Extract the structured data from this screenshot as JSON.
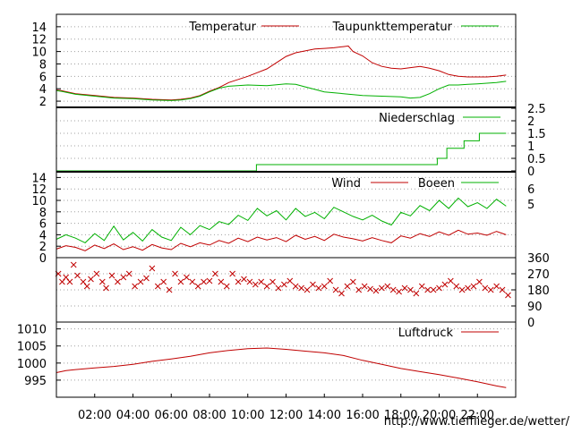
{
  "colors": {
    "red": "#c00000",
    "green": "#00b000",
    "frame": "#000000",
    "grid": "#a0a0a0",
    "url": "#ff0000"
  },
  "footer_url": "http://www.tiefflieger.de/wetter/",
  "chart_data": [
    {
      "id": "temperature",
      "type": "line",
      "ylim": [
        1,
        16
      ],
      "yticks": [
        2,
        4,
        6,
        8,
        10,
        12,
        14
      ],
      "ytick_labels": [
        "2",
        "4",
        "6",
        "8",
        "10",
        "12",
        "14"
      ],
      "series": [
        {
          "name": "Temperatur",
          "color": "#c00000",
          "x": [
            0,
            0.25,
            1,
            2,
            3,
            4,
            5,
            6,
            6.5,
            7,
            7.5,
            8,
            8.5,
            9,
            9.5,
            10,
            10.5,
            11,
            11.5,
            12,
            12.5,
            13,
            13.5,
            14,
            14.5,
            15,
            15.25,
            15.5,
            16,
            16.5,
            17,
            17.5,
            18,
            18.5,
            19,
            19.5,
            20,
            20.5,
            21,
            21.5,
            22,
            22.5,
            23,
            23.5
          ],
          "y": [
            3.8,
            3.7,
            3.2,
            2.9,
            2.6,
            2.5,
            2.3,
            2.2,
            2.3,
            2.5,
            2.9,
            3.6,
            4.2,
            5.0,
            5.5,
            6.0,
            6.6,
            7.2,
            8.2,
            9.2,
            9.8,
            10.1,
            10.4,
            10.5,
            10.6,
            10.8,
            10.9,
            10.0,
            9.3,
            8.2,
            7.6,
            7.3,
            7.2,
            7.4,
            7.6,
            7.3,
            6.9,
            6.3,
            6.0,
            5.9,
            5.9,
            5.9,
            6.0,
            6.2
          ]
        },
        {
          "name": "Taupunkttemperatur",
          "color": "#00b000",
          "x": [
            0,
            0.25,
            1,
            2,
            3,
            4,
            5,
            6,
            6.5,
            7,
            7.5,
            8,
            8.5,
            9,
            10,
            11,
            12,
            12.5,
            13,
            13.5,
            14,
            15,
            16,
            17,
            18,
            18.5,
            19,
            19.5,
            20,
            20.5,
            21,
            21.5,
            22,
            22.5,
            23,
            23.5
          ],
          "y": [
            3.7,
            3.6,
            3.1,
            2.8,
            2.5,
            2.4,
            2.2,
            2.1,
            2.2,
            2.4,
            2.8,
            3.5,
            4.1,
            4.4,
            4.6,
            4.5,
            4.8,
            4.7,
            4.3,
            3.9,
            3.5,
            3.2,
            2.9,
            2.8,
            2.7,
            2.5,
            2.6,
            3.2,
            4.0,
            4.6,
            4.6,
            4.7,
            4.8,
            4.9,
            5.0,
            5.2
          ]
        }
      ]
    },
    {
      "id": "precipitation",
      "type": "line",
      "ylim": [
        0,
        2.5
      ],
      "yticks": [
        0,
        0.5,
        1,
        1.5,
        2,
        2.5
      ],
      "ytick_labels": [
        "0",
        "0.5",
        "1",
        "1.5",
        "2",
        "2.5"
      ],
      "series": [
        {
          "name": "Niederschlag",
          "color": "#00b000",
          "x": [
            0,
            10.45,
            10.45,
            19.9,
            19.9,
            20.4,
            20.4,
            21.3,
            21.3,
            22.1,
            22.1,
            23.5
          ],
          "y": [
            0,
            0,
            0.25,
            0.25,
            0.5,
            0.5,
            0.9,
            0.9,
            1.2,
            1.2,
            1.5,
            1.5
          ]
        }
      ]
    },
    {
      "id": "wind",
      "type": "line",
      "ylim": [
        0,
        15
      ],
      "yticks": [
        0,
        2,
        4,
        6,
        8,
        10,
        12,
        14
      ],
      "ytick_labels": [
        "0",
        "2",
        "4",
        "6",
        "8",
        "10",
        "12",
        "14"
      ],
      "right_labels": [
        "6",
        "5"
      ],
      "series": [
        {
          "name": "Wind",
          "color": "#c00000",
          "x": [
            0,
            0.5,
            1,
            1.5,
            2,
            2.5,
            3,
            3.5,
            4,
            4.5,
            5,
            5.5,
            6,
            6.5,
            7,
            7.5,
            8,
            8.5,
            9,
            9.5,
            10,
            10.5,
            11,
            11.5,
            12,
            12.5,
            13,
            13.5,
            14,
            14.5,
            15,
            15.5,
            16,
            16.5,
            17,
            17.5,
            18,
            18.5,
            19,
            19.5,
            20,
            20.5,
            21,
            21.5,
            22,
            22.5,
            23,
            23.5
          ],
          "y": [
            1.5,
            2.1,
            1.8,
            1.2,
            2.2,
            1.6,
            2.4,
            1.4,
            1.9,
            1.3,
            2.3,
            1.7,
            1.4,
            2.5,
            1.9,
            2.6,
            2.2,
            3.0,
            2.5,
            3.4,
            2.8,
            3.6,
            3.1,
            3.5,
            2.8,
            3.9,
            3.2,
            3.7,
            3.0,
            4.1,
            3.6,
            3.3,
            2.9,
            3.5,
            3.0,
            2.6,
            3.8,
            3.4,
            4.2,
            3.7,
            4.5,
            3.9,
            4.8,
            4.1,
            4.3,
            3.9,
            4.6,
            4.0
          ]
        },
        {
          "name": "Boeen",
          "color": "#00b000",
          "x": [
            0,
            0.5,
            1,
            1.5,
            2,
            2.5,
            3,
            3.5,
            4,
            4.5,
            5,
            5.5,
            6,
            6.5,
            7,
            7.5,
            8,
            8.5,
            9,
            9.5,
            10,
            10.5,
            11,
            11.5,
            12,
            12.5,
            13,
            13.5,
            14,
            14.5,
            15,
            15.5,
            16,
            16.5,
            17,
            17.5,
            18,
            18.5,
            19,
            19.5,
            20,
            20.5,
            21,
            21.5,
            22,
            22.5,
            23,
            23.5
          ],
          "y": [
            3.2,
            4.0,
            3.4,
            2.6,
            4.2,
            3.0,
            5.5,
            3.1,
            4.4,
            2.9,
            4.9,
            3.6,
            3.0,
            5.3,
            4.0,
            5.6,
            4.9,
            6.3,
            5.8,
            7.4,
            6.5,
            8.6,
            7.3,
            8.2,
            6.6,
            8.6,
            7.2,
            7.9,
            6.8,
            8.8,
            8.0,
            7.2,
            6.6,
            7.4,
            6.4,
            5.7,
            7.9,
            7.3,
            9.1,
            8.2,
            10.0,
            8.6,
            10.4,
            8.9,
            9.6,
            8.6,
            10.2,
            9.0
          ]
        }
      ]
    },
    {
      "id": "wind-direction",
      "type": "scatter",
      "ylim": [
        0,
        360
      ],
      "yticks": [
        0,
        90,
        180,
        270,
        360
      ],
      "ytick_labels": [
        "0",
        "90",
        "180",
        "270",
        "360"
      ],
      "series": [
        {
          "name": "",
          "color": "#c00000",
          "x": [
            0.1,
            0.3,
            0.5,
            0.7,
            0.9,
            1.1,
            1.4,
            1.6,
            1.8,
            2.1,
            2.4,
            2.6,
            2.9,
            3.2,
            3.5,
            3.8,
            4.1,
            4.4,
            4.7,
            5.0,
            5.3,
            5.6,
            5.9,
            6.2,
            6.5,
            6.8,
            7.1,
            7.4,
            7.7,
            8.0,
            8.3,
            8.6,
            8.9,
            9.2,
            9.5,
            9.8,
            10.1,
            10.4,
            10.7,
            11.0,
            11.3,
            11.6,
            11.9,
            12.2,
            12.5,
            12.8,
            13.1,
            13.4,
            13.7,
            14.0,
            14.3,
            14.6,
            14.9,
            15.2,
            15.5,
            15.8,
            16.1,
            16.4,
            16.7,
            17.0,
            17.3,
            17.6,
            17.9,
            18.2,
            18.5,
            18.8,
            19.1,
            19.4,
            19.7,
            20.0,
            20.3,
            20.6,
            20.9,
            21.2,
            21.5,
            21.8,
            22.1,
            22.4,
            22.7,
            23.0,
            23.3,
            23.6
          ],
          "y": [
            270,
            225,
            250,
            225,
            320,
            260,
            225,
            200,
            240,
            270,
            225,
            190,
            260,
            225,
            250,
            270,
            200,
            225,
            245,
            300,
            200,
            225,
            180,
            270,
            225,
            250,
            225,
            200,
            225,
            230,
            270,
            225,
            200,
            270,
            225,
            240,
            225,
            210,
            225,
            200,
            225,
            190,
            210,
            230,
            200,
            190,
            180,
            210,
            190,
            200,
            230,
            180,
            160,
            200,
            225,
            180,
            200,
            185,
            175,
            190,
            200,
            180,
            170,
            190,
            180,
            160,
            200,
            180,
            180,
            190,
            210,
            230,
            200,
            180,
            190,
            200,
            225,
            190,
            180,
            200,
            180,
            150
          ]
        }
      ]
    },
    {
      "id": "pressure",
      "type": "line",
      "ylim": [
        990,
        1012
      ],
      "yticks": [
        995,
        1000,
        1005,
        1010
      ],
      "ytick_labels": [
        "995",
        "1000",
        "1005",
        "1010"
      ],
      "xticks": [
        2,
        4,
        6,
        8,
        10,
        12,
        14,
        16,
        18,
        20,
        22
      ],
      "xtick_labels": [
        "02:00",
        "04:00",
        "06:00",
        "08:00",
        "10:00",
        "12:00",
        "14:00",
        "16:00",
        "18:00",
        "20:00",
        "22:00"
      ],
      "series": [
        {
          "name": "Luftdruck",
          "color": "#c00000",
          "x": [
            0,
            0.5,
            1,
            2,
            3,
            4,
            5,
            6,
            7,
            8,
            9,
            10,
            11,
            12,
            13,
            14,
            15,
            16,
            17,
            18,
            19,
            20,
            21,
            22,
            23,
            23.5
          ],
          "y": [
            997.2,
            997.8,
            998.1,
            998.6,
            999.0,
            999.6,
            1000.5,
            1001.2,
            1002.0,
            1003.0,
            1003.7,
            1004.2,
            1004.4,
            1004.0,
            1003.5,
            1003.0,
            1002.2,
            1000.8,
            999.6,
            998.4,
            997.5,
            996.6,
            995.6,
            994.5,
            993.3,
            992.8
          ]
        }
      ]
    }
  ]
}
